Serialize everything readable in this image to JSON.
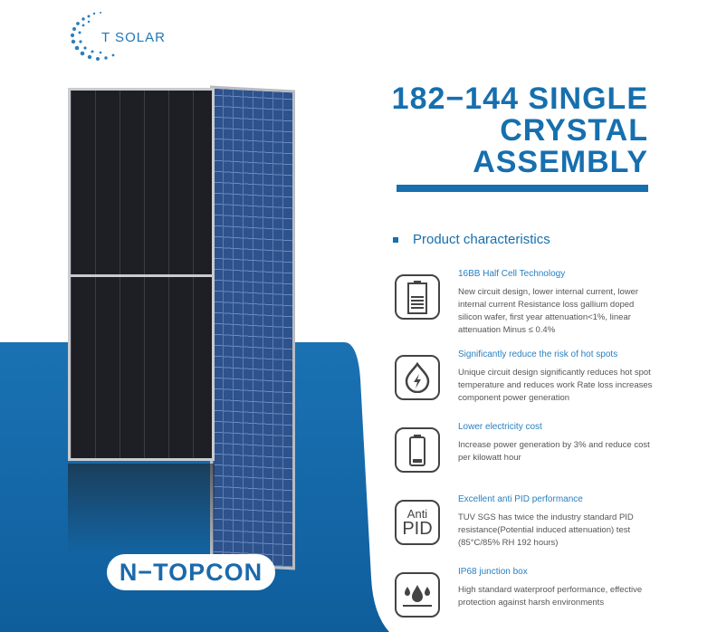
{
  "brand": {
    "logo_text": "T SOLAR",
    "accent": "#166fae"
  },
  "title": {
    "lines": [
      "182−144 SINGLE",
      "CRYSTAL",
      "ASSEMBLY"
    ]
  },
  "badge": "N−TOPCON",
  "section_label": "Product characteristics",
  "features": [
    {
      "icon": "battery-icon",
      "title": "16BB Half Cell Technology",
      "desc": "New circuit design, lower internal current, lower internal current Resistance loss gallium doped silicon wafer, first year attenuation<1%, linear attenuation Minus ≤ 0.4%"
    },
    {
      "icon": "lightning-drop-icon",
      "title": "Significantly reduce the risk of hot spots",
      "desc": "Unique circuit design significantly reduces hot spot temperature and reduces work Rate loss increases component power generation"
    },
    {
      "icon": "battery-low-icon",
      "title": "Lower electricity cost",
      "desc": "Increase power generation by 3% and reduce cost per kilowatt hour"
    },
    {
      "icon": "anti-pid-icon",
      "title": "Excellent anti PID performance",
      "desc": "TUV SGS has twice the industry standard PID resistance(Potential induced attenuation) test (85°C/85% RH 192 hours)",
      "icon_text": [
        "Anti",
        "PID"
      ]
    },
    {
      "icon": "water-drops-icon",
      "title": "IP68 junction box",
      "desc": "High standard waterproof performance, effective protection against harsh environments"
    }
  ]
}
